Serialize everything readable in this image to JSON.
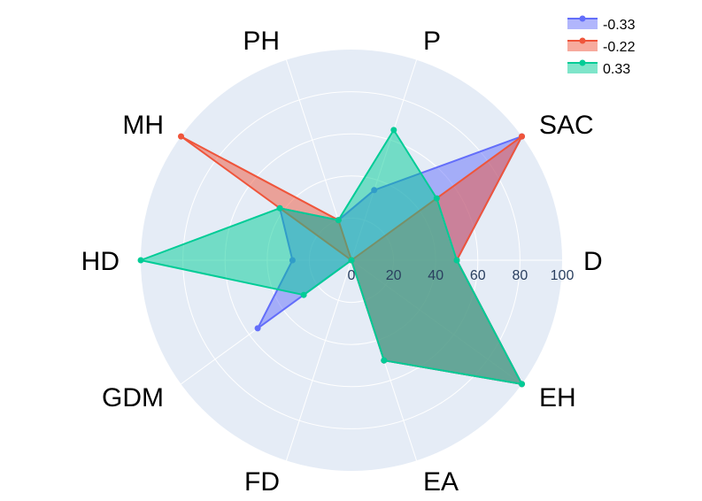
{
  "chart_data": {
    "type": "radar",
    "categories": [
      "D",
      "EH",
      "EA",
      "FD",
      "GDM",
      "HD",
      "MH",
      "PH",
      "P",
      "SAC"
    ],
    "radial_range": [
      0,
      100
    ],
    "radial_ticks": [
      "0",
      "20",
      "40",
      "60",
      "80",
      "100"
    ],
    "radial_tick_values": [
      0,
      20,
      40,
      60,
      80,
      100
    ],
    "grid": true,
    "legend_position": "top-right",
    "series": [
      {
        "name": "-0.33",
        "color": "#636efa",
        "values": [
          50,
          100,
          50,
          0,
          55,
          28,
          42,
          20,
          35,
          100
        ]
      },
      {
        "name": "-0.22",
        "color": "#ef553b",
        "values": [
          50,
          100,
          50,
          0,
          0,
          0,
          100,
          20,
          0,
          100
        ]
      },
      {
        "name": "0.33",
        "color": "#00cc96",
        "values": [
          50,
          100,
          50,
          0,
          28,
          100,
          42,
          20,
          65,
          50
        ]
      }
    ]
  }
}
